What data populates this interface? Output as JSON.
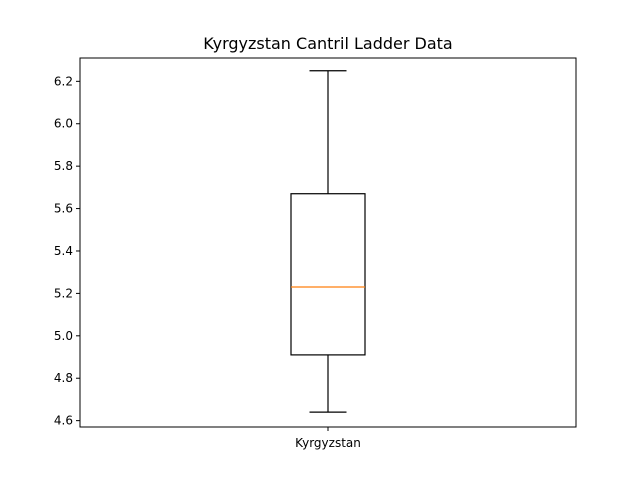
{
  "chart_data": {
    "type": "box",
    "title": "Kyrgyzstan Cantril Ladder Data",
    "xlabel": "",
    "ylabel": "",
    "categories": [
      "Kyrgyzstan"
    ],
    "series": [
      {
        "min": 4.64,
        "q1": 4.91,
        "median": 5.23,
        "q3": 5.67,
        "max": 6.25
      }
    ],
    "ylim": [
      4.57,
      6.31
    ],
    "yticks": [
      4.6,
      4.8,
      5.0,
      5.2,
      5.4,
      5.6,
      5.8,
      6.0,
      6.2
    ],
    "ytick_labels": [
      "4.6",
      "4.8",
      "5.0",
      "5.2",
      "5.4",
      "5.6",
      "5.8",
      "6.0",
      "6.2"
    ],
    "grid": false,
    "colors": {
      "box": "#000000",
      "median": "#ff7f0e",
      "axes": "#000000"
    }
  }
}
